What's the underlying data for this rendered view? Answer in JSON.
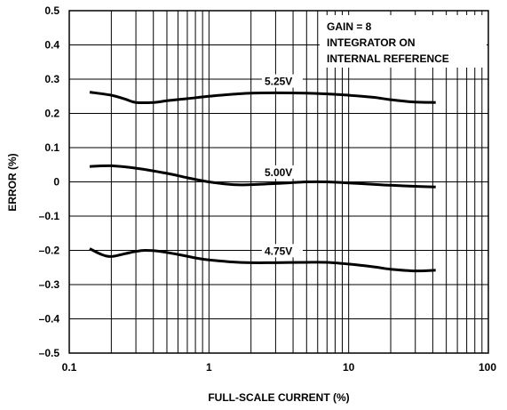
{
  "chart_data": {
    "type": "line",
    "xscale": "log",
    "xlim": [
      0.1,
      100
    ],
    "ylim": [
      -0.5,
      0.5
    ],
    "grid": true,
    "xlabel": "FULL-SCALE CURRENT (%)",
    "ylabel": "ERROR (%)",
    "x_tick_labels": [
      "0.1",
      "1",
      "10",
      "100"
    ],
    "y_tick_labels": [
      "0.5",
      "0.4",
      "0.3",
      "0.2",
      "0.1",
      "0",
      "–0.1",
      "–0.2",
      "–0.3",
      "–0.4",
      "–0.5"
    ],
    "conditions": [
      "GAIN = 8",
      "INTEGRATOR ON",
      "INTERNAL REFERENCE"
    ],
    "series": [
      {
        "name": "5.25V",
        "x": [
          0.14,
          0.2,
          0.25,
          0.3,
          0.4,
          0.5,
          0.7,
          1,
          1.5,
          2,
          3,
          5,
          7,
          10,
          15,
          20,
          30,
          42
        ],
        "y": [
          0.262,
          0.253,
          0.242,
          0.232,
          0.232,
          0.237,
          0.243,
          0.25,
          0.256,
          0.259,
          0.26,
          0.259,
          0.257,
          0.253,
          0.247,
          0.24,
          0.233,
          0.232
        ]
      },
      {
        "name": "5.00V",
        "x": [
          0.14,
          0.2,
          0.3,
          0.5,
          0.7,
          1,
          1.5,
          2,
          3,
          5,
          7,
          10,
          15,
          20,
          30,
          42
        ],
        "y": [
          0.045,
          0.047,
          0.04,
          0.025,
          0.012,
          0.0,
          -0.008,
          -0.008,
          -0.005,
          0.0,
          0.0,
          -0.003,
          -0.007,
          -0.01,
          -0.013,
          -0.015
        ]
      },
      {
        "name": "4.75V",
        "x": [
          0.14,
          0.17,
          0.2,
          0.25,
          0.3,
          0.35,
          0.45,
          0.6,
          0.8,
          1,
          1.5,
          2,
          3,
          5,
          7,
          10,
          15,
          20,
          30,
          42
        ],
        "y": [
          -0.195,
          -0.212,
          -0.218,
          -0.21,
          -0.203,
          -0.2,
          -0.203,
          -0.212,
          -0.222,
          -0.228,
          -0.234,
          -0.236,
          -0.236,
          -0.235,
          -0.235,
          -0.24,
          -0.248,
          -0.255,
          -0.26,
          -0.258
        ]
      }
    ]
  }
}
